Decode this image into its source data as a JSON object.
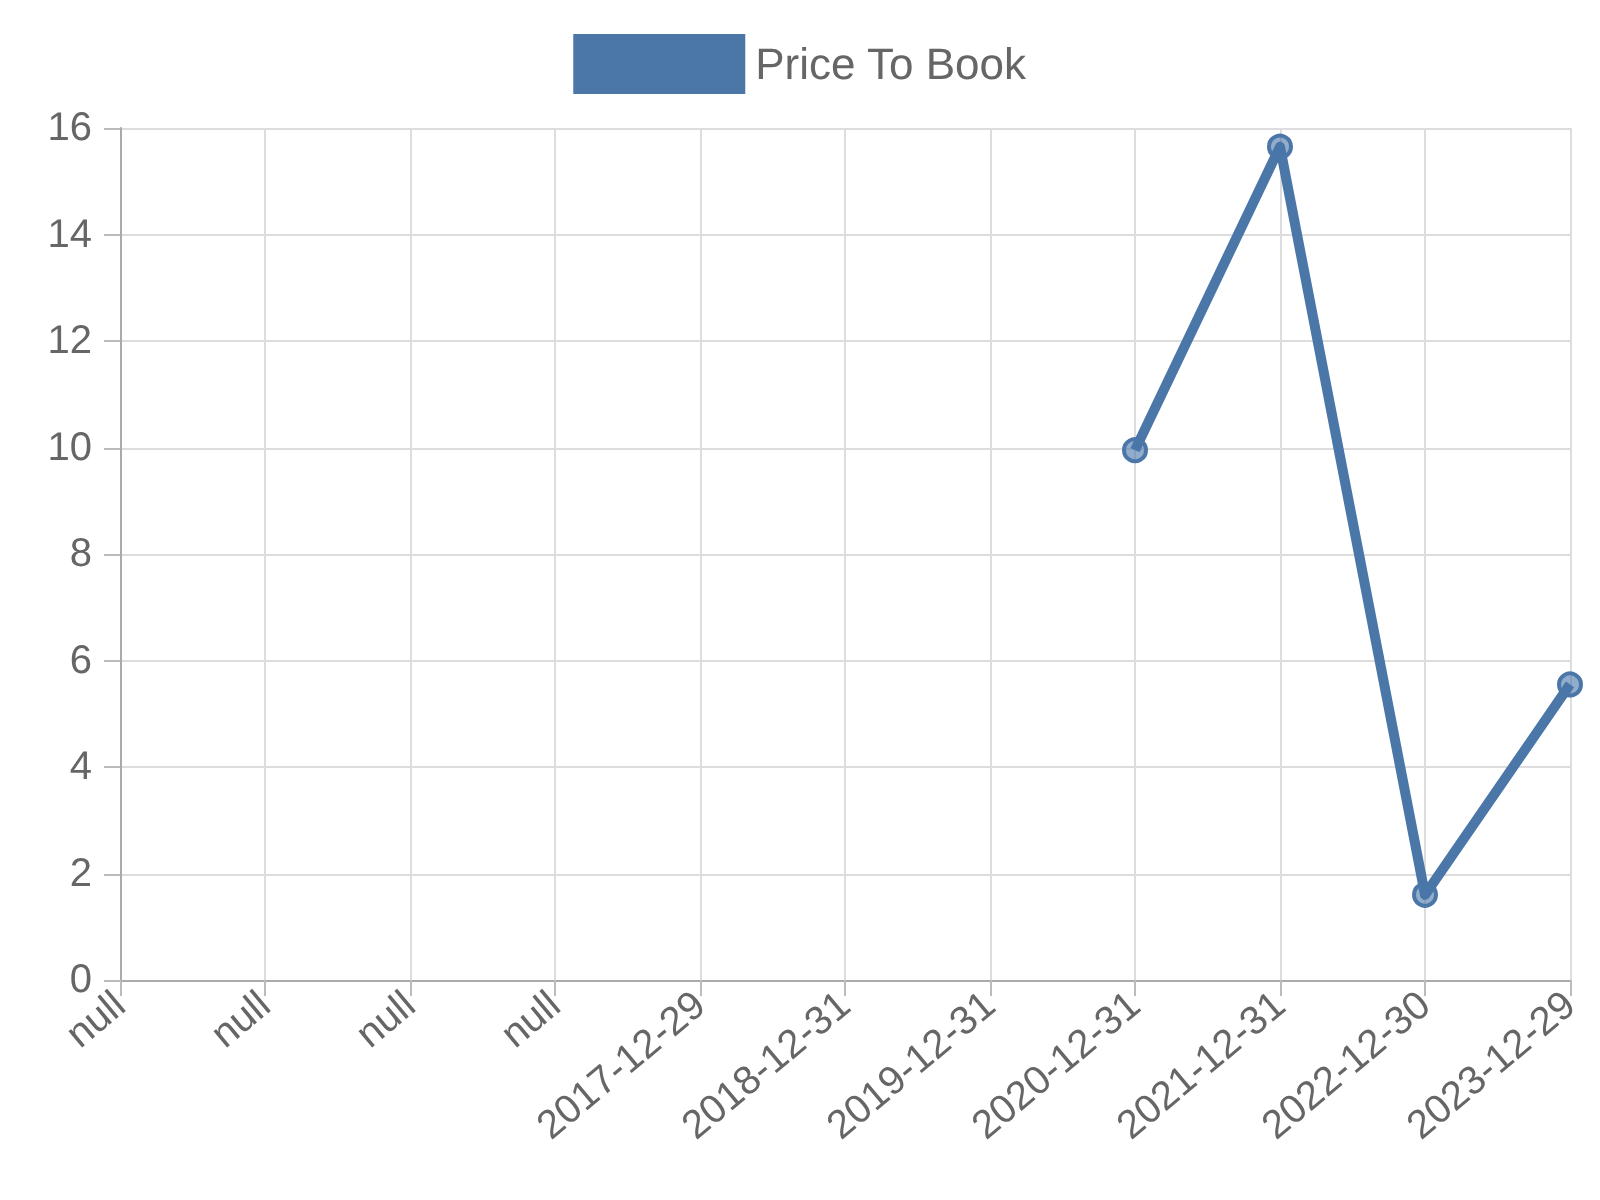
{
  "chart_data": {
    "type": "line",
    "categories": [
      "null",
      "null",
      "null",
      "null",
      "2017-12-29",
      "2018-12-31",
      "2019-12-31",
      "2020-12-31",
      "2021-12-31",
      "2022-12-30",
      "2023-12-29"
    ],
    "series": [
      {
        "name": "Price To Book",
        "color": "#4a76a8",
        "values": [
          null,
          null,
          null,
          null,
          null,
          null,
          null,
          9.95,
          15.65,
          1.6,
          5.55
        ]
      }
    ],
    "ylim": [
      0,
      16
    ],
    "yticks": [
      0,
      2,
      4,
      6,
      8,
      10,
      12,
      14,
      16
    ],
    "grid": true,
    "legend": "top",
    "marker": "circle"
  }
}
